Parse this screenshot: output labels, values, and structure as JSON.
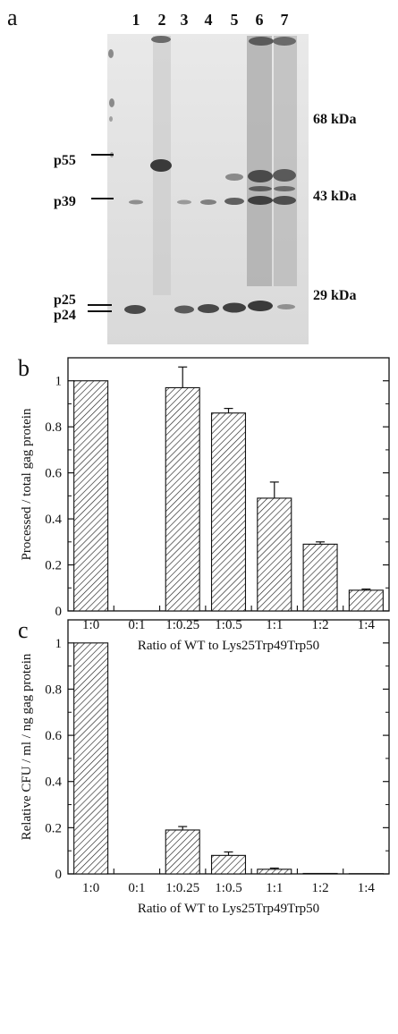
{
  "panel_a": {
    "letter": "a",
    "lanes": [
      "1",
      "2",
      "3",
      "4",
      "5",
      "6",
      "7"
    ],
    "left_labels": [
      "p55",
      "p39",
      "p25",
      "p24"
    ],
    "right_labels": [
      "68 kDa",
      "43 kDa",
      "29 kDa"
    ]
  },
  "chart_data": [
    {
      "type": "bar",
      "panel": "b",
      "categories": [
        "1:0",
        "0:1",
        "1:0.25",
        "1:0.5",
        "1:1",
        "1:2",
        "1:4"
      ],
      "values": [
        1.0,
        0.0,
        0.97,
        0.86,
        0.49,
        0.29,
        0.09
      ],
      "errors": [
        0,
        0,
        0.09,
        0.02,
        0.07,
        0.01,
        0.005
      ],
      "xlabel": "Ratio of WT to Lys25Trp49Trp50",
      "ylabel": "Processed / total gag protein",
      "ylim": [
        0,
        1.1
      ],
      "yticks": [
        "0",
        "0.2",
        "0.4",
        "0.6",
        "0.8",
        "1"
      ],
      "pattern": "diagonal-hatch"
    },
    {
      "type": "bar",
      "panel": "c",
      "categories": [
        "1:0",
        "0:1",
        "1:0.25",
        "1:0.5",
        "1:1",
        "1:2",
        "1:4"
      ],
      "values": [
        1.0,
        0.0,
        0.19,
        0.08,
        0.02,
        0.002,
        0.001
      ],
      "errors": [
        0,
        0,
        0.015,
        0.015,
        0.005,
        0,
        0
      ],
      "xlabel": "Ratio of WT to Lys25Trp49Trp50",
      "ylabel": "Relative CFU / ml / ng gag protein",
      "ylim": [
        0,
        1.1
      ],
      "yticks": [
        "0",
        "0.2",
        "0.4",
        "0.6",
        "0.8",
        "1"
      ],
      "pattern": "diagonal-hatch"
    }
  ]
}
